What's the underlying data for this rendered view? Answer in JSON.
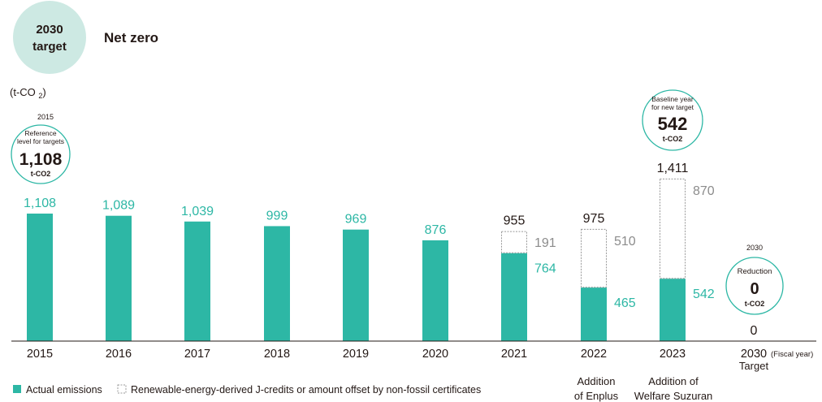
{
  "header": {
    "badge_line1": "2030",
    "badge_line2": "target",
    "goal": "Net zero",
    "unit": "(t-CO2)"
  },
  "callouts": {
    "reference": {
      "year": "2015",
      "line1": "Reference",
      "line2": "level for targets",
      "value": "1,108",
      "unit": "t-CO2"
    },
    "baseline": {
      "line1": "Baseline year",
      "line2": "for new target",
      "value": "542",
      "unit": "t-CO2"
    },
    "target": {
      "year": "2030",
      "line1": "Reduction",
      "value": "0",
      "unit": "t-CO2"
    }
  },
  "legend": {
    "actual": "Actual emissions",
    "offset": "Renewable-energy-derived J-credits or amount offset by non-fossil certificates"
  },
  "x_notes": {
    "fiscal_year": "(Fiscal year)",
    "target_label": "Target",
    "note_2022": [
      "Addition",
      "of Enplus"
    ],
    "note_2023": [
      "Addition of",
      "Welfare Suzuran"
    ]
  },
  "colors": {
    "actual": "#2db7a5",
    "offset_border": "#9a9a9a",
    "text": "#231815",
    "offset_text": "#8c8c8c"
  },
  "chart_data": {
    "type": "bar",
    "stacked": true,
    "categories": [
      "2015",
      "2016",
      "2017",
      "2018",
      "2019",
      "2020",
      "2021",
      "2022",
      "2023",
      "2030"
    ],
    "series": [
      {
        "name": "Actual emissions",
        "values": [
          1108,
          1089,
          1039,
          999,
          969,
          876,
          764,
          465,
          542,
          0
        ]
      },
      {
        "name": "Renewable-energy-derived J-credits or amount offset by non-fossil certificates",
        "values": [
          0,
          0,
          0,
          0,
          0,
          0,
          191,
          510,
          870,
          0
        ]
      }
    ],
    "data_labels": {
      "actual": [
        "1,108",
        "1,089",
        "1,039",
        "999",
        "969",
        "876",
        "764",
        "465",
        "542",
        "0"
      ],
      "offset": [
        null,
        null,
        null,
        null,
        null,
        null,
        "191",
        "510",
        "870",
        null
      ],
      "total": [
        null,
        null,
        null,
        null,
        null,
        null,
        "955",
        "975",
        "1,411",
        null
      ]
    },
    "ylabel": "(t-CO2)",
    "ylim": [
      0,
      1500
    ],
    "grid": false,
    "legend_position": "bottom-left"
  }
}
